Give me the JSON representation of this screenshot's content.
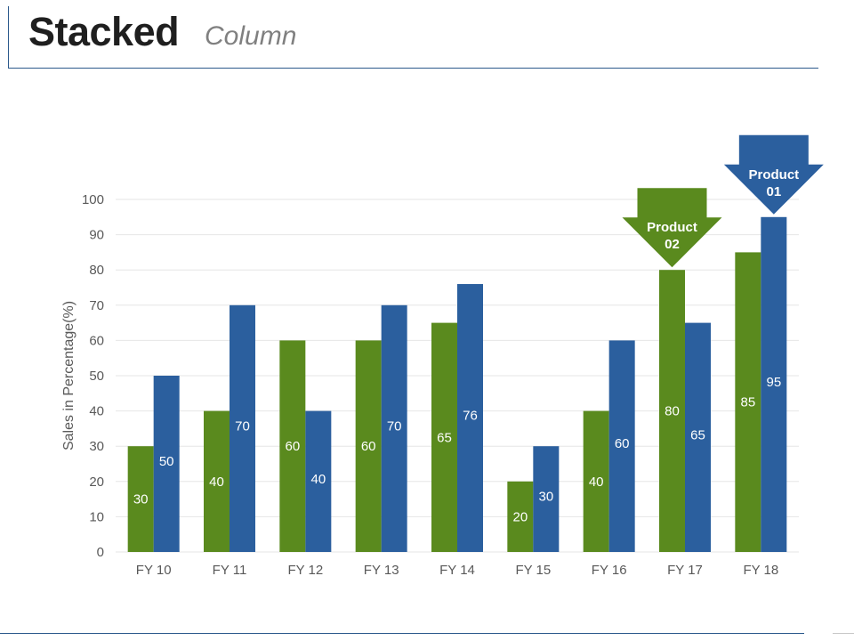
{
  "header": {
    "title": "Stacked",
    "subtitle": "Column"
  },
  "colors": {
    "product02": "#5a8a1e",
    "product01": "#2b5f9e",
    "title_rule": "#2c5a8c",
    "gridline": "#e6e6e6",
    "axis_text": "#595959"
  },
  "chart_data": {
    "type": "bar",
    "categories": [
      "FY 10",
      "FY 11",
      "FY 12",
      "FY 13",
      "FY 14",
      "FY 15",
      "FY 16",
      "FY 17",
      "FY 18"
    ],
    "series": [
      {
        "values": [
          30,
          40,
          60,
          60,
          65,
          20,
          40,
          80,
          85
        ],
        "color": "#5a8a1e"
      },
      {
        "values": [
          50,
          70,
          40,
          70,
          76,
          30,
          60,
          65,
          95
        ],
        "color": "#2b5f9e"
      }
    ],
    "title": "",
    "xlabel": "",
    "ylabel": "Sales in Percentage(%)",
    "ylim": [
      0,
      100
    ],
    "yticks": [
      0,
      10,
      20,
      30,
      40,
      50,
      60,
      70,
      80,
      90,
      100
    ],
    "grid": true,
    "legend": "none",
    "annotations": [
      {
        "line1": "Product",
        "line2": "02",
        "category": "FY 17",
        "series": 0,
        "color": "#5a8a1e"
      },
      {
        "line1": "Product",
        "line2": "01",
        "category": "FY 18",
        "series": 1,
        "color": "#2b5f9e"
      }
    ]
  }
}
